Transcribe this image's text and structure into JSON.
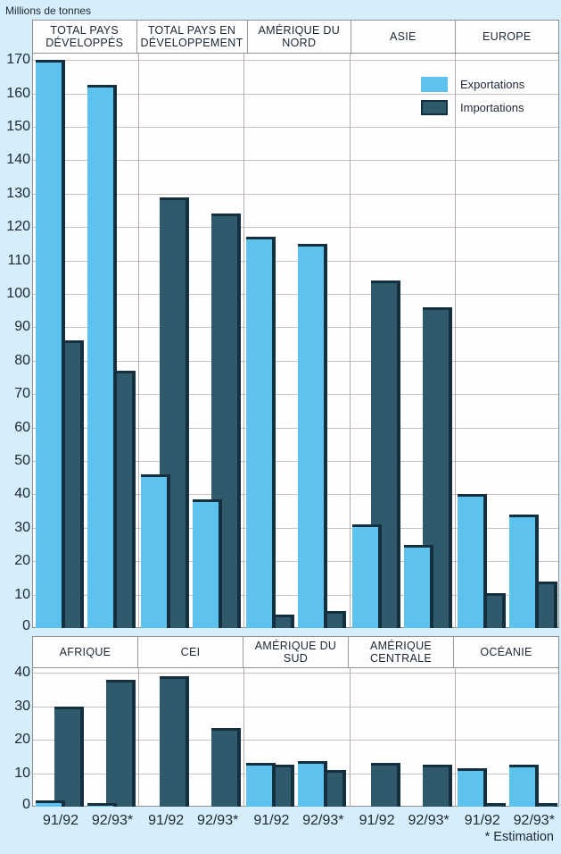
{
  "title": "Millions de tonnes",
  "footnote": "* Estimation",
  "legend": {
    "items": [
      {
        "label": "Exportations",
        "color": "#5ec2ef"
      },
      {
        "label": "Importations",
        "color": "#2f5a6b"
      }
    ]
  },
  "colors": {
    "export_bar": "#5ec2ef",
    "import_bar": "#2f5a6b",
    "bar_outline": "#142f3d",
    "background": "#d5eefa",
    "plot_background": "#fefefe",
    "gridline": "#cbbfbf",
    "text": "#1c2733"
  },
  "chart_data": [
    {
      "type": "bar",
      "panel": "top",
      "unit": "Millions de tonnes",
      "ylim": [
        0,
        170
      ],
      "ytick_step": 10,
      "grid": true,
      "legend_position": "inside-top-right",
      "years": [
        "91/92",
        "92/93*"
      ],
      "show_year_labels": false,
      "groups": [
        {
          "label": "TOTAL PAYS DÉVELOPPÉS",
          "values": [
            {
              "year": "91/92",
              "exportations": 170,
              "importations": 86
            },
            {
              "year": "92/93*",
              "exportations": 162.5,
              "importations": 77
            }
          ]
        },
        {
          "label": "TOTAL PAYS EN DÉVELOPPEMENT",
          "values": [
            {
              "year": "91/92",
              "exportations": 46,
              "importations": 129
            },
            {
              "year": "92/93*",
              "exportations": 38.5,
              "importations": 124
            }
          ]
        },
        {
          "label": "AMÉRIQUE DU NORD",
          "values": [
            {
              "year": "91/92",
              "exportations": 117,
              "importations": 4
            },
            {
              "year": "92/93*",
              "exportations": 115,
              "importations": 5
            }
          ]
        },
        {
          "label": "ASIE",
          "values": [
            {
              "year": "91/92",
              "exportations": 31,
              "importations": 104
            },
            {
              "year": "92/93*",
              "exportations": 25,
              "importations": 96
            }
          ]
        },
        {
          "label": "EUROPE",
          "values": [
            {
              "year": "91/92",
              "exportations": 40,
              "importations": 10.5
            },
            {
              "year": "92/93*",
              "exportations": 34,
              "importations": 14
            }
          ]
        }
      ]
    },
    {
      "type": "bar",
      "panel": "bottom",
      "unit": "Millions de tonnes",
      "ylim": [
        0,
        40
      ],
      "ytick_step": 10,
      "grid": true,
      "years": [
        "91/92",
        "92/93*"
      ],
      "show_year_labels": true,
      "groups": [
        {
          "label": "AFRIQUE",
          "values": [
            {
              "year": "91/92",
              "exportations": 2,
              "importations": 30
            },
            {
              "year": "92/93*",
              "exportations": 1,
              "importations": 38
            }
          ]
        },
        {
          "label": "CEI",
          "values": [
            {
              "year": "91/92",
              "exportations": 0,
              "importations": 39
            },
            {
              "year": "92/93*",
              "exportations": 0,
              "importations": 23.5
            }
          ]
        },
        {
          "label": "AMÉRIQUE DU SUD",
          "values": [
            {
              "year": "91/92",
              "exportations": 13,
              "importations": 12.5
            },
            {
              "year": "92/93*",
              "exportations": 13.5,
              "importations": 11
            }
          ]
        },
        {
          "label": "AMÉRIQUE CENTRALE",
          "values": [
            {
              "year": "91/92",
              "exportations": 0,
              "importations": 13
            },
            {
              "year": "92/93*",
              "exportations": 0,
              "importations": 12.5
            }
          ]
        },
        {
          "label": "OCÉANIE",
          "values": [
            {
              "year": "91/92",
              "exportations": 11.5,
              "importations": 1
            },
            {
              "year": "92/93*",
              "exportations": 12.5,
              "importations": 1
            }
          ]
        }
      ]
    }
  ]
}
